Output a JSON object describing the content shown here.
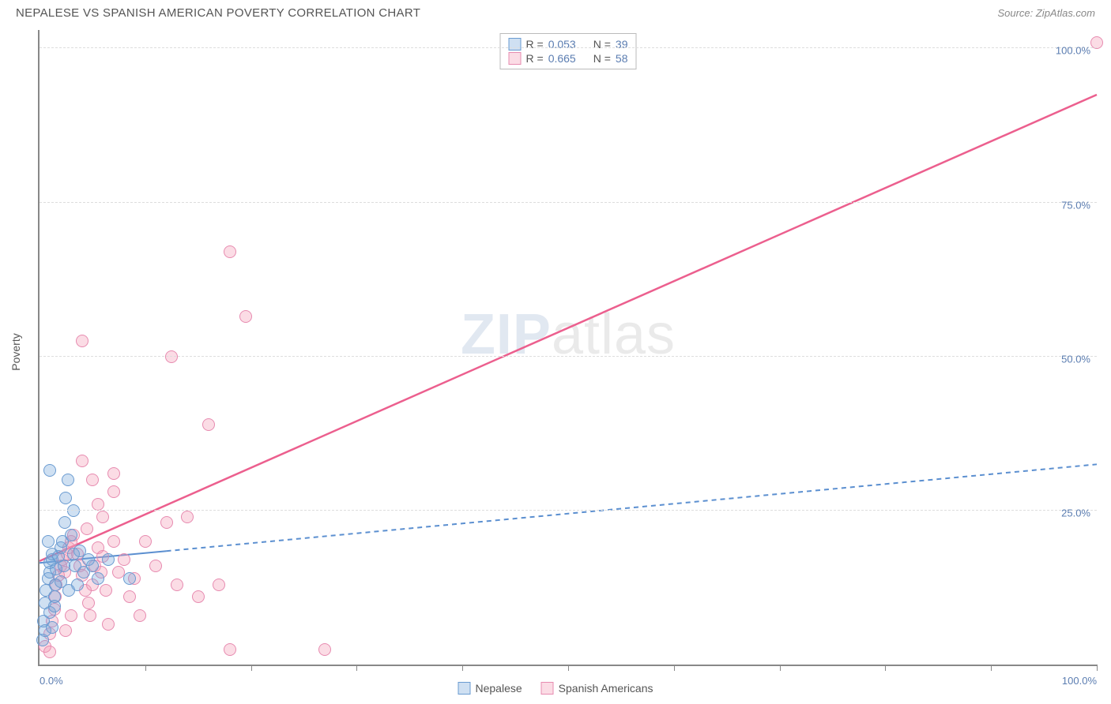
{
  "title": "NEPALESE VS SPANISH AMERICAN POVERTY CORRELATION CHART",
  "source_label": "Source: ",
  "source_name": "ZipAtlas.com",
  "ylabel": "Poverty",
  "watermark": {
    "bold": "ZIP",
    "light": "atlas"
  },
  "axes": {
    "xmin": 0,
    "xmax": 100,
    "ymin": 0,
    "ymax": 103,
    "x_label_min": "0.0%",
    "x_label_max": "100.0%",
    "x_tick_step": 10,
    "y_gridlines": [
      {
        "v": 25,
        "label": "25.0%"
      },
      {
        "v": 50,
        "label": "50.0%"
      },
      {
        "v": 75,
        "label": "75.0%"
      },
      {
        "v": 100,
        "label": "100.0%"
      }
    ],
    "grid_color": "#dddddd",
    "axis_color": "#888888",
    "tick_label_color": "#5b7db1"
  },
  "series": {
    "blue": {
      "label": "Nepalese",
      "fill": "rgba(118,167,219,0.35)",
      "stroke": "#6a9bd1",
      "line_stroke": "#5b8fd0",
      "marker_radius": 8,
      "trend": {
        "x1": 0,
        "y1": 16.5,
        "x2": 100,
        "y2": 32.5,
        "solid_until_x": 12,
        "dash": "6,5",
        "width": 2
      },
      "R_label": "R = ",
      "R": "0.053",
      "N_label": "N = ",
      "N": "39",
      "points": [
        [
          0.3,
          4
        ],
        [
          0.4,
          7
        ],
        [
          0.5,
          10
        ],
        [
          0.6,
          12
        ],
        [
          0.8,
          14
        ],
        [
          1.0,
          15
        ],
        [
          1.0,
          16.5
        ],
        [
          1.2,
          17
        ],
        [
          1.2,
          18
        ],
        [
          1.4,
          11
        ],
        [
          1.5,
          13
        ],
        [
          1.6,
          15.5
        ],
        [
          1.8,
          17.5
        ],
        [
          2.0,
          19
        ],
        [
          2.2,
          20
        ],
        [
          2.3,
          16
        ],
        [
          2.4,
          23
        ],
        [
          2.5,
          27
        ],
        [
          2.7,
          30
        ],
        [
          1.0,
          31.5
        ],
        [
          3.0,
          21
        ],
        [
          3.2,
          18
        ],
        [
          3.4,
          16
        ],
        [
          0.5,
          5.5
        ],
        [
          3.6,
          13
        ],
        [
          3.8,
          18.5
        ],
        [
          4.2,
          15
        ],
        [
          4.6,
          17
        ],
        [
          5.0,
          16
        ],
        [
          5.5,
          14
        ],
        [
          6.5,
          17
        ],
        [
          8.5,
          14
        ],
        [
          1.0,
          8.5
        ],
        [
          1.2,
          6
        ],
        [
          1.4,
          9.5
        ],
        [
          0.8,
          20
        ],
        [
          2.0,
          13.5
        ],
        [
          2.8,
          12
        ],
        [
          3.2,
          25
        ]
      ]
    },
    "pink": {
      "label": "Spanish Americans",
      "fill": "rgba(243,154,181,0.35)",
      "stroke": "#e78bb0",
      "line_stroke": "#ec5f8e",
      "marker_radius": 8,
      "trend": {
        "x1": 0,
        "y1": 16.8,
        "x2": 100,
        "y2": 92.5,
        "solid_until_x": 100,
        "dash": "",
        "width": 2.5
      },
      "R_label": "R = ",
      "R": "0.665",
      "N_label": "N = ",
      "N": "58",
      "points": [
        [
          0.5,
          3
        ],
        [
          1.0,
          5
        ],
        [
          1.2,
          7
        ],
        [
          1.4,
          9
        ],
        [
          1.5,
          11
        ],
        [
          1.6,
          13
        ],
        [
          1.8,
          14.5
        ],
        [
          2.0,
          16
        ],
        [
          2.2,
          17
        ],
        [
          2.4,
          15
        ],
        [
          2.6,
          18
        ],
        [
          2.8,
          19
        ],
        [
          3.0,
          20
        ],
        [
          3.2,
          21
        ],
        [
          3.6,
          18
        ],
        [
          3.8,
          16
        ],
        [
          4.0,
          14.5
        ],
        [
          4.3,
          12
        ],
        [
          4.6,
          10
        ],
        [
          4.8,
          8
        ],
        [
          5.0,
          13
        ],
        [
          5.2,
          16
        ],
        [
          5.5,
          19
        ],
        [
          5.8,
          15
        ],
        [
          6.0,
          17.5
        ],
        [
          6.3,
          12
        ],
        [
          4.0,
          33
        ],
        [
          6.0,
          24
        ],
        [
          5.0,
          30
        ],
        [
          7.0,
          20
        ],
        [
          7.5,
          15
        ],
        [
          8.0,
          17
        ],
        [
          8.5,
          11
        ],
        [
          9.0,
          14
        ],
        [
          9.5,
          8
        ],
        [
          10.0,
          20
        ],
        [
          11.0,
          16
        ],
        [
          12.0,
          23
        ],
        [
          13.0,
          13
        ],
        [
          14.0,
          24
        ],
        [
          15.0,
          11
        ],
        [
          16.0,
          39
        ],
        [
          17.0,
          13
        ],
        [
          18.0,
          2.5
        ],
        [
          19.5,
          56.5
        ],
        [
          12.5,
          50
        ],
        [
          18.0,
          67
        ],
        [
          4.0,
          52.5
        ],
        [
          1.0,
          2
        ],
        [
          2.5,
          5.5
        ],
        [
          3.0,
          8
        ],
        [
          6.5,
          6.5
        ],
        [
          27.0,
          2.5
        ],
        [
          7.0,
          31
        ],
        [
          100,
          101
        ],
        [
          4.5,
          22
        ],
        [
          5.5,
          26
        ],
        [
          7.0,
          28
        ]
      ]
    }
  },
  "style": {
    "background": "#ffffff",
    "title_color": "#555555",
    "title_fontsize": 15,
    "source_color": "#888888",
    "stats_box_border": "#bbbbbb"
  }
}
